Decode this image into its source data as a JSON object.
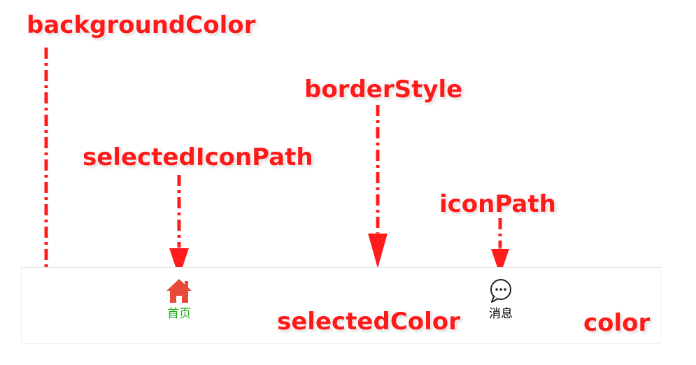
{
  "annotations": {
    "background_color": "backgroundColor",
    "border_style": "borderStyle",
    "selected_icon_path": "selectedIconPath",
    "icon_path": "iconPath",
    "selected_color": "selectedColor",
    "color": "color"
  },
  "tabbar": {
    "items": [
      {
        "label": "首页",
        "icon": "home-icon",
        "selected": true
      },
      {
        "label": "消息",
        "icon": "chat-bubble-icon",
        "selected": false
      }
    ]
  },
  "colors": {
    "annotation": "#ff1a1a",
    "selected_text": "#1aad19",
    "text": "#000000",
    "home_icon": "#e8493a"
  }
}
